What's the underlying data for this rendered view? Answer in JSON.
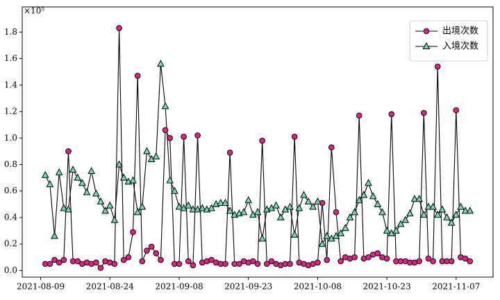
{
  "chart_data": {
    "type": "line",
    "annotation": "×10⁵",
    "x": [
      "2021-08-10",
      "2021-08-11",
      "2021-08-12",
      "2021-08-13",
      "2021-08-14",
      "2021-08-15",
      "2021-08-16",
      "2021-08-17",
      "2021-08-18",
      "2021-08-19",
      "2021-08-20",
      "2021-08-21",
      "2021-08-22",
      "2021-08-23",
      "2021-08-24",
      "2021-08-25",
      "2021-08-26",
      "2021-08-27",
      "2021-08-28",
      "2021-08-29",
      "2021-08-30",
      "2021-08-31",
      "2021-09-01",
      "2021-09-02",
      "2021-09-03",
      "2021-09-04",
      "2021-09-05",
      "2021-09-06",
      "2021-09-07",
      "2021-09-08",
      "2021-09-09",
      "2021-09-10",
      "2021-09-11",
      "2021-09-12",
      "2021-09-13",
      "2021-09-14",
      "2021-09-15",
      "2021-09-16",
      "2021-09-17",
      "2021-09-18",
      "2021-09-19",
      "2021-09-20",
      "2021-09-21",
      "2021-09-22",
      "2021-09-23",
      "2021-09-24",
      "2021-09-25",
      "2021-09-26",
      "2021-09-27",
      "2021-09-28",
      "2021-09-29",
      "2021-09-30",
      "2021-10-01",
      "2021-10-02",
      "2021-10-03",
      "2021-10-04",
      "2021-10-05",
      "2021-10-06",
      "2021-10-07",
      "2021-10-08",
      "2021-10-09",
      "2021-10-10",
      "2021-10-11",
      "2021-10-12",
      "2021-10-13",
      "2021-10-14",
      "2021-10-15",
      "2021-10-16",
      "2021-10-17",
      "2021-10-18",
      "2021-10-19",
      "2021-10-20",
      "2021-10-21",
      "2021-10-22",
      "2021-10-23",
      "2021-10-24",
      "2021-10-25",
      "2021-10-26",
      "2021-10-27",
      "2021-10-28",
      "2021-10-29",
      "2021-10-30",
      "2021-10-31",
      "2021-11-01",
      "2021-11-02",
      "2021-11-03",
      "2021-11-04",
      "2021-11-05",
      "2021-11-06",
      "2021-11-07",
      "2021-11-08",
      "2021-11-09",
      "2021-11-10"
    ],
    "series": [
      {
        "name": "出境次数",
        "color": "#e0218a",
        "marker": "circle",
        "values": [
          0.05,
          0.05,
          0.08,
          0.06,
          0.08,
          0.9,
          0.07,
          0.07,
          0.05,
          0.06,
          0.05,
          0.06,
          0.02,
          0.07,
          0.06,
          0.05,
          1.83,
          0.08,
          0.1,
          0.29,
          1.47,
          0.07,
          0.15,
          0.18,
          0.13,
          0.08,
          1.06,
          1.0,
          0.05,
          0.05,
          1.01,
          0.07,
          0.04,
          1.02,
          0.06,
          0.07,
          0.08,
          0.06,
          0.05,
          0.05,
          0.89,
          0.05,
          0.05,
          0.07,
          0.06,
          0.07,
          0.05,
          0.98,
          0.05,
          0.07,
          0.05,
          0.04,
          0.05,
          0.05,
          1.01,
          0.06,
          0.05,
          0.04,
          0.05,
          0.06,
          0.51,
          0.08,
          0.93,
          0.44,
          0.07,
          0.1,
          0.09,
          0.1,
          1.17,
          0.09,
          0.1,
          0.12,
          0.13,
          0.1,
          0.09,
          1.18,
          0.07,
          0.07,
          0.07,
          0.06,
          0.06,
          0.07,
          1.19,
          0.09,
          0.07,
          1.54,
          0.07,
          0.07,
          0.07,
          1.21,
          0.1,
          0.09,
          0.07
        ]
      },
      {
        "name": "入境次数",
        "color": "#6fddb5",
        "marker": "triangle",
        "values": [
          0.72,
          0.65,
          0.26,
          0.74,
          0.47,
          0.46,
          0.76,
          0.7,
          0.66,
          0.59,
          0.75,
          0.58,
          0.52,
          0.45,
          0.49,
          0.38,
          0.8,
          0.7,
          0.67,
          0.68,
          0.44,
          0.48,
          0.9,
          0.84,
          0.86,
          1.56,
          1.24,
          0.68,
          0.6,
          0.48,
          0.47,
          0.49,
          0.46,
          0.46,
          0.47,
          0.46,
          0.47,
          0.5,
          0.51,
          0.51,
          0.45,
          0.42,
          0.43,
          0.44,
          0.53,
          0.42,
          0.44,
          0.24,
          0.46,
          0.47,
          0.49,
          0.4,
          0.46,
          0.48,
          0.27,
          0.47,
          0.57,
          0.52,
          0.48,
          0.52,
          0.2,
          0.26,
          0.24,
          0.26,
          0.28,
          0.32,
          0.4,
          0.44,
          0.53,
          0.57,
          0.66,
          0.56,
          0.5,
          0.44,
          0.3,
          0.28,
          0.3,
          0.35,
          0.38,
          0.43,
          0.54,
          0.54,
          0.42,
          0.48,
          0.48,
          0.42,
          0.46,
          0.4,
          0.36,
          0.42,
          0.48,
          0.45,
          0.45
        ]
      }
    ],
    "xlim": [
      "2021-08-05",
      "2021-11-15"
    ],
    "xticks": [
      "2021-08-09",
      "2021-08-24",
      "2021-09-08",
      "2021-09-23",
      "2021-10-08",
      "2021-10-23",
      "2021-11-07"
    ],
    "ylim": [
      -0.05,
      1.99
    ],
    "yticks": [
      {
        "value": 0,
        "label": "0.0"
      },
      0.2,
      0.4,
      0.6,
      0.8,
      {
        "value": 1,
        "label": "1.0"
      },
      1.2,
      1.4,
      1.6,
      1.8
    ],
    "legend": "upper right"
  }
}
